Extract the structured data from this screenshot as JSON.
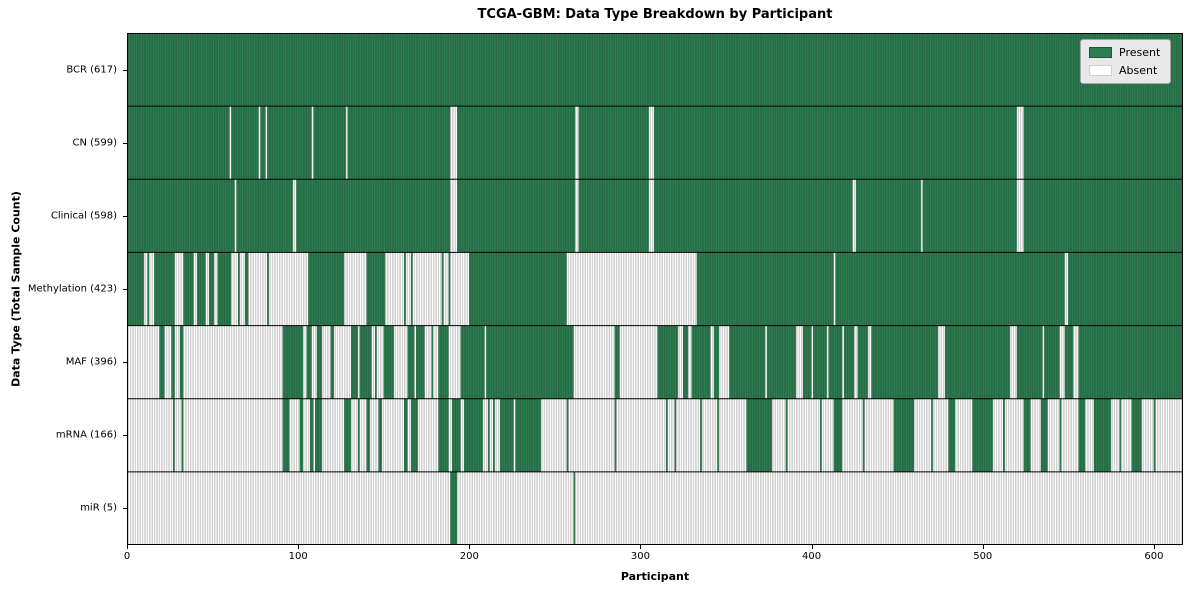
{
  "colors": {
    "present": "#2e7d52",
    "present_edge": "#1f5737",
    "absent": "#ffffff",
    "absent_edge": "#999999",
    "row_divider": "#000000",
    "axis": "#000000",
    "legend_bg": "#e9e9e9",
    "legend_border": "#a6a6a6"
  },
  "chart_data": {
    "type": "heatmap",
    "title": "TCGA-GBM: Data Type Breakdown by Participant",
    "xlabel": "Participant",
    "ylabel": "Data Type (Total Sample Count)",
    "n_participants": 617,
    "x_range": [
      0,
      617
    ],
    "x_ticks": [
      0,
      100,
      200,
      300,
      400,
      500,
      600
    ],
    "grid": false,
    "legend": {
      "position": "upper right",
      "entries": [
        {
          "label": "Present",
          "color": "#2e7d52"
        },
        {
          "label": "Absent",
          "color": "#ffffff"
        }
      ]
    },
    "rows": [
      {
        "label": "BCR (617)",
        "data_type": "BCR",
        "total": 617,
        "present_runs": [
          [
            0,
            617
          ]
        ]
      },
      {
        "label": "CN (599)",
        "data_type": "CN",
        "total": 599,
        "present_runs": [
          [
            0,
            60
          ],
          [
            61,
            77
          ],
          [
            78,
            81
          ],
          [
            82,
            108
          ],
          [
            109,
            128
          ],
          [
            129,
            189
          ],
          [
            193,
            262
          ],
          [
            264,
            305
          ],
          [
            308,
            520
          ],
          [
            524,
            617
          ]
        ]
      },
      {
        "label": "Clinical (598)",
        "data_type": "Clinical",
        "total": 598,
        "present_runs": [
          [
            0,
            63
          ],
          [
            64,
            97
          ],
          [
            99,
            189
          ],
          [
            193,
            262
          ],
          [
            264,
            305
          ],
          [
            308,
            424
          ],
          [
            426,
            464
          ],
          [
            465,
            520
          ],
          [
            524,
            617
          ]
        ]
      },
      {
        "label": "Methylation (423)",
        "data_type": "Methylation",
        "total": 423,
        "present_runs": [
          [
            0,
            10
          ],
          [
            12,
            13
          ],
          [
            16,
            28
          ],
          [
            33,
            39
          ],
          [
            41,
            46
          ],
          [
            48,
            51
          ],
          [
            53,
            61
          ],
          [
            65,
            66
          ],
          [
            69,
            71
          ],
          [
            82,
            83
          ],
          [
            106,
            127
          ],
          [
            140,
            151
          ],
          [
            162,
            163
          ],
          [
            166,
            167
          ],
          [
            184,
            185
          ],
          [
            188,
            189
          ],
          [
            200,
            257
          ],
          [
            333,
            413
          ],
          [
            414,
            548
          ],
          [
            550,
            617
          ]
        ]
      },
      {
        "label": "MAF (396)",
        "data_type": "MAF",
        "total": 396,
        "present_runs": [
          [
            19,
            22
          ],
          [
            26,
            28
          ],
          [
            31,
            33
          ],
          [
            91,
            103
          ],
          [
            105,
            108
          ],
          [
            111,
            114
          ],
          [
            119,
            121
          ],
          [
            131,
            135
          ],
          [
            136,
            143
          ],
          [
            145,
            146
          ],
          [
            150,
            156
          ],
          [
            164,
            168
          ],
          [
            169,
            174
          ],
          [
            178,
            179
          ],
          [
            182,
            188
          ],
          [
            195,
            209
          ],
          [
            210,
            261
          ],
          [
            285,
            288
          ],
          [
            310,
            322
          ],
          [
            325,
            328
          ],
          [
            330,
            341
          ],
          [
            343,
            346
          ],
          [
            352,
            373
          ],
          [
            374,
            391
          ],
          [
            395,
            400
          ],
          [
            401,
            409
          ],
          [
            410,
            418
          ],
          [
            419,
            425
          ],
          [
            427,
            433
          ],
          [
            435,
            474
          ],
          [
            478,
            516
          ],
          [
            520,
            535
          ],
          [
            536,
            545
          ],
          [
            548,
            553
          ],
          [
            556,
            617
          ]
        ]
      },
      {
        "label": "mRNA (166)",
        "data_type": "mRNA",
        "total": 166,
        "present_runs": [
          [
            27,
            28
          ],
          [
            32,
            33
          ],
          [
            91,
            95
          ],
          [
            101,
            103
          ],
          [
            107,
            109
          ],
          [
            110,
            114
          ],
          [
            127,
            131
          ],
          [
            135,
            136
          ],
          [
            140,
            142
          ],
          [
            147,
            149
          ],
          [
            162,
            164
          ],
          [
            166,
            170
          ],
          [
            182,
            188
          ],
          [
            190,
            195
          ],
          [
            197,
            208
          ],
          [
            211,
            212
          ],
          [
            214,
            215
          ],
          [
            218,
            226
          ],
          [
            227,
            242
          ],
          [
            257,
            258
          ],
          [
            285,
            286
          ],
          [
            315,
            316
          ],
          [
            320,
            321
          ],
          [
            335,
            336
          ],
          [
            345,
            346
          ],
          [
            362,
            377
          ],
          [
            385,
            386
          ],
          [
            405,
            406
          ],
          [
            413,
            418
          ],
          [
            430,
            431
          ],
          [
            448,
            460
          ],
          [
            470,
            471
          ],
          [
            480,
            484
          ],
          [
            494,
            506
          ],
          [
            512,
            513
          ],
          [
            524,
            528
          ],
          [
            534,
            538
          ],
          [
            545,
            546
          ],
          [
            556,
            560
          ],
          [
            565,
            575
          ],
          [
            580,
            581
          ],
          [
            587,
            593
          ],
          [
            600,
            601
          ]
        ]
      },
      {
        "label": "miR (5)",
        "data_type": "miR",
        "total": 5,
        "present_runs": [
          [
            189,
            193
          ],
          [
            261,
            262
          ]
        ]
      }
    ]
  }
}
